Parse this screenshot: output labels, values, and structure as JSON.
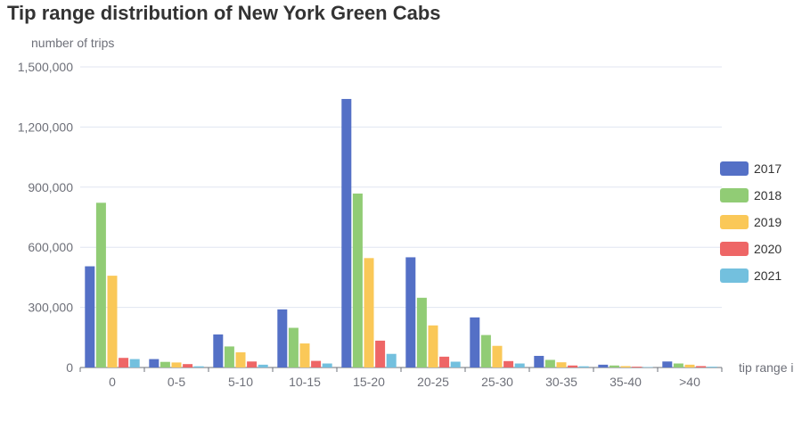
{
  "chart_data": {
    "type": "bar",
    "title": "Tip range distribution of New York Green Cabs",
    "xlabel": "tip range i",
    "ylabel": "number of trips",
    "categories": [
      "0",
      "0-5",
      "5-10",
      "10-15",
      "15-20",
      "20-25",
      "25-30",
      "30-35",
      "35-40",
      ">40"
    ],
    "y_ticks": [
      "0",
      "300,000",
      "600,000",
      "900,000",
      "1,200,000",
      "1,500,000"
    ],
    "ylim": [
      0,
      1500000
    ],
    "grid": true,
    "legend_position": "right",
    "series": [
      {
        "name": "2017",
        "color": "#5470c6",
        "values": [
          505000,
          42000,
          165000,
          290000,
          1340000,
          550000,
          250000,
          58000,
          14000,
          30000
        ]
      },
      {
        "name": "2018",
        "color": "#91cc75",
        "values": [
          822000,
          28000,
          105000,
          198000,
          868000,
          348000,
          162000,
          38000,
          10000,
          20000
        ]
      },
      {
        "name": "2019",
        "color": "#fac858",
        "values": [
          458000,
          25000,
          76000,
          120000,
          546000,
          210000,
          108000,
          26000,
          7000,
          14000
        ]
      },
      {
        "name": "2020",
        "color": "#ee6666",
        "values": [
          48000,
          17000,
          30000,
          33000,
          134000,
          54000,
          32000,
          10000,
          4000,
          7000
        ]
      },
      {
        "name": "2021",
        "color": "#73c0de",
        "values": [
          42000,
          6000,
          14000,
          20000,
          68000,
          29000,
          20000,
          6000,
          2000,
          4000
        ]
      }
    ]
  }
}
